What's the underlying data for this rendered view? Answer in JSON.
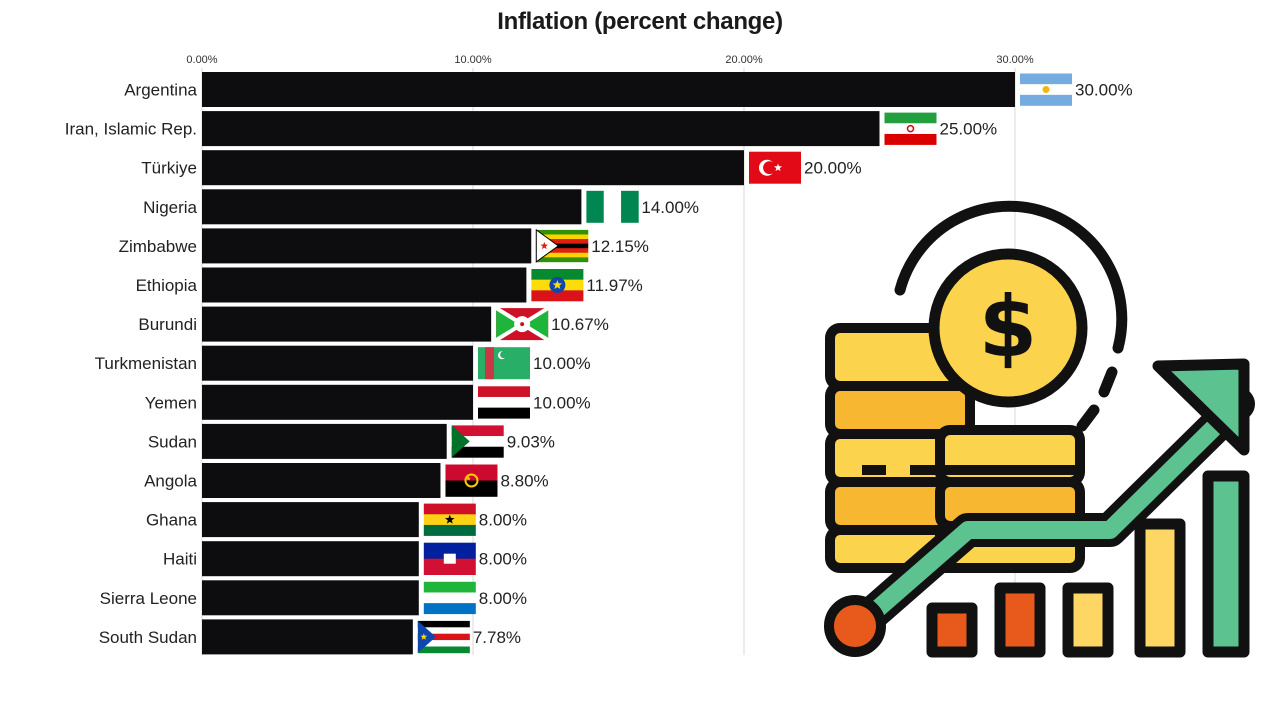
{
  "chart_data": {
    "type": "bar",
    "orientation": "horizontal",
    "title": "Inflation (percent change)",
    "xlim": [
      0,
      30
    ],
    "x_ticks": [
      0,
      10,
      20,
      30
    ],
    "x_tick_labels": [
      "0.00%",
      "10.00%",
      "20.00%",
      "30.00%"
    ],
    "grid": true,
    "categories": [
      "Argentina",
      "Iran, Islamic Rep.",
      "Türkiye",
      "Nigeria",
      "Zimbabwe",
      "Ethiopia",
      "Burundi",
      "Turkmenistan",
      "Yemen",
      "Sudan",
      "Angola",
      "Ghana",
      "Haiti",
      "Sierra Leone",
      "South Sudan"
    ],
    "values": [
      30.0,
      25.0,
      20.0,
      14.0,
      12.15,
      11.97,
      10.67,
      10.0,
      10.0,
      9.03,
      8.8,
      8.0,
      8.0,
      8.0,
      7.78
    ],
    "value_labels": [
      "30.00%",
      "25.00%",
      "20.00%",
      "14.00%",
      "12.15%",
      "11.97%",
      "10.67%",
      "10.00%",
      "10.00%",
      "9.03%",
      "8.80%",
      "8.00%",
      "8.00%",
      "8.00%",
      "7.78%"
    ],
    "bar_color": "#0d0d0f",
    "flags": [
      "argentina-flag",
      "iran-flag",
      "turkiye-flag",
      "nigeria-flag",
      "zimbabwe-flag",
      "ethiopia-flag",
      "burundi-flag",
      "turkmenistan-flag",
      "yemen-flag",
      "sudan-flag",
      "angola-flag",
      "ghana-flag",
      "haiti-flag",
      "sierra-leone-flag",
      "south-sudan-flag"
    ]
  },
  "illustration": {
    "icon": "money-growth-chart-icon",
    "colors": {
      "coin": "#fcd34d",
      "coin_dark": "#f7b731",
      "arrow": "#5cc28f",
      "bar_red": "#e85a1c",
      "bar_yellow": "#fdd663",
      "outline": "#111111"
    }
  }
}
